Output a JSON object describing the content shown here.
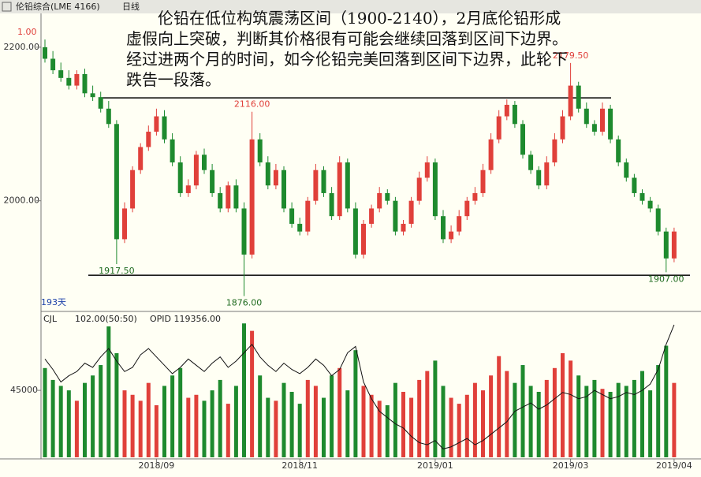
{
  "header": {
    "title": "伦铅综合(LME 4166)",
    "period": "日线",
    "scale_note": "1.00",
    "days": "193天"
  },
  "chart_data": [
    {
      "type": "candlestick",
      "title": "伦铅在低位构筑震荡区间（1900-2140），2月底伦铅形成虚假向上突破，判断其价格很有可能会继续回落到区间下边界。经过进两个月的时间，如今伦铅完美回落到区间下边界，此轮下跌告一段落。",
      "up_color": "#e0403a",
      "down_color": "#1e8a2e",
      "ylim": [
        1858,
        2243
      ],
      "yticks": [
        {
          "value": 2200,
          "label": "2200.00"
        },
        {
          "value": 2000,
          "label": "2000.00"
        }
      ],
      "open": [
        2200,
        2185,
        2170,
        2160,
        2150,
        2165,
        2140,
        2135,
        2120,
        2100,
        1950,
        1990,
        2040,
        2070,
        2090,
        2110,
        2080,
        2050,
        2010,
        2020,
        2060,
        2040,
        2010,
        1990,
        2020,
        1990,
        1930,
        2080,
        2050,
        2020,
        2040,
        1990,
        1970,
        1960,
        2000,
        2040,
        2010,
        1980,
        2050,
        1990,
        1930,
        1970,
        1990,
        2010,
        2000,
        1960,
        1970,
        2000,
        2030,
        2050,
        1980,
        1950,
        1960,
        1980,
        2000,
        2010,
        2040,
        2080,
        2110,
        2125,
        2100,
        2060,
        2040,
        2020,
        2050,
        2080,
        2110,
        2150,
        2120,
        2100,
        2090,
        2120,
        2080,
        2050,
        2030,
        2010,
        2000,
        1990,
        1960,
        1925
      ],
      "high": [
        2210,
        2195,
        2180,
        2170,
        2170,
        2172,
        2150,
        2142,
        2130,
        2105,
        1998,
        2045,
        2075,
        2098,
        2120,
        2118,
        2088,
        2058,
        2028,
        2065,
        2068,
        2048,
        2018,
        2025,
        2028,
        1998,
        2116,
        2088,
        2058,
        2048,
        2045,
        1998,
        1978,
        2005,
        2048,
        2045,
        2018,
        2058,
        2055,
        1998,
        1975,
        1995,
        2018,
        2015,
        2005,
        1975,
        2005,
        2038,
        2058,
        2055,
        1988,
        1968,
        1988,
        2005,
        2018,
        2048,
        2088,
        2118,
        2132,
        2130,
        2105,
        2065,
        2045,
        2058,
        2088,
        2118,
        2179.5,
        2155,
        2128,
        2105,
        2128,
        2125,
        2085,
        2055,
        2035,
        2015,
        2005,
        1995,
        1965,
        1965
      ],
      "low": [
        2180,
        2165,
        2155,
        2145,
        2145,
        2135,
        2130,
        2115,
        2095,
        1917.5,
        1945,
        1985,
        2035,
        2065,
        2085,
        2075,
        2045,
        2005,
        2005,
        2015,
        2035,
        2005,
        1985,
        1985,
        1985,
        1876,
        1925,
        2045,
        2015,
        2015,
        1985,
        1965,
        1955,
        1955,
        1995,
        2005,
        1975,
        1975,
        1985,
        1925,
        1925,
        1965,
        1985,
        1995,
        1955,
        1955,
        1965,
        1995,
        2025,
        1975,
        1945,
        1945,
        1955,
        1975,
        1995,
        2005,
        2035,
        2075,
        2105,
        2095,
        2055,
        2035,
        2015,
        2015,
        2045,
        2075,
        2105,
        2115,
        2095,
        2085,
        2085,
        2075,
        2045,
        2025,
        2005,
        1995,
        1985,
        1955,
        1907,
        1920
      ],
      "close": [
        2185,
        2170,
        2160,
        2150,
        2165,
        2140,
        2135,
        2120,
        2100,
        1950,
        1990,
        2040,
        2070,
        2090,
        2110,
        2080,
        2050,
        2010,
        2020,
        2060,
        2040,
        2010,
        1990,
        2020,
        1990,
        1930,
        2080,
        2050,
        2020,
        2040,
        1990,
        1970,
        1960,
        2000,
        2040,
        2010,
        1980,
        2050,
        1990,
        1930,
        1970,
        1990,
        2010,
        2000,
        1960,
        1970,
        2000,
        2030,
        2050,
        1980,
        1950,
        1960,
        1980,
        2000,
        2010,
        2040,
        2080,
        2110,
        2125,
        2100,
        2060,
        2040,
        2020,
        2050,
        2080,
        2110,
        2150,
        2120,
        2100,
        2090,
        2120,
        2080,
        2050,
        2030,
        2010,
        2000,
        1990,
        1960,
        1925,
        1960
      ],
      "levels": [
        2134,
        1903
      ],
      "annotations": [
        {
          "text": "2116.00",
          "value": 2116
        },
        {
          "text": "2179.50",
          "value": 2179.5
        },
        {
          "text": "1917.50",
          "value": 1917.5
        },
        {
          "text": "1876.00",
          "value": 1876
        },
        {
          "text": "1907.00",
          "value": 1907
        }
      ]
    },
    {
      "type": "bar",
      "name": "CJL",
      "params": "102.00(50:50)",
      "line_label": "OPID 119356.00",
      "categories": [
        null,
        null,
        null,
        null,
        null,
        null,
        null,
        null,
        null,
        null,
        null,
        null,
        null,
        null,
        "2018/09",
        null,
        null,
        null,
        null,
        null,
        null,
        null,
        null,
        null,
        null,
        null,
        null,
        null,
        null,
        null,
        null,
        null,
        "2018/11",
        null,
        null,
        null,
        null,
        null,
        null,
        null,
        null,
        null,
        null,
        null,
        null,
        null,
        null,
        null,
        null,
        "2019/01",
        null,
        null,
        null,
        null,
        null,
        null,
        null,
        null,
        null,
        null,
        null,
        null,
        null,
        null,
        null,
        null,
        "2019/03",
        null,
        null,
        null,
        null,
        null,
        null,
        null,
        null,
        null,
        null,
        null,
        null,
        "2019/04"
      ],
      "ylim": [
        0,
        97000
      ],
      "yticks": [
        45000
      ],
      "y2lim": [
        56000,
        125000
      ],
      "values": [
        60000,
        52000,
        48000,
        45000,
        38000,
        50000,
        55000,
        62000,
        88000,
        70000,
        45000,
        42000,
        38000,
        50000,
        35000,
        48000,
        55000,
        60000,
        40000,
        42000,
        38000,
        45000,
        52000,
        36000,
        48000,
        90000,
        85000,
        55000,
        40000,
        38000,
        50000,
        44000,
        36000,
        52000,
        48000,
        40000,
        55000,
        60000,
        45000,
        72000,
        48000,
        42000,
        38000,
        35000,
        50000,
        44000,
        40000,
        52000,
        58000,
        65000,
        48000,
        40000,
        36000,
        42000,
        50000,
        45000,
        55000,
        68000,
        58000,
        50000,
        62000,
        48000,
        44000,
        52000,
        60000,
        70000,
        65000,
        55000,
        48000,
        52000,
        46000,
        44000,
        50000,
        48000,
        52000,
        58000,
        45000,
        62000,
        75000,
        50000
      ],
      "series": [
        {
          "name": "OPID",
          "color": "#111111",
          "axis": "y2",
          "values": [
            103000,
            98000,
            92000,
            95000,
            97000,
            101000,
            99000,
            104000,
            108000,
            102000,
            97000,
            99000,
            105000,
            108000,
            104000,
            100000,
            96000,
            99000,
            103000,
            100000,
            97000,
            101000,
            104000,
            99000,
            102000,
            106000,
            110000,
            104000,
            100000,
            97000,
            101000,
            98000,
            96000,
            99000,
            103000,
            100000,
            95000,
            98000,
            106000,
            109000,
            92000,
            84000,
            78000,
            75000,
            72000,
            70000,
            66000,
            63000,
            62000,
            64000,
            60000,
            61000,
            63000,
            65000,
            62000,
            64000,
            67000,
            70000,
            73000,
            78000,
            80000,
            82000,
            79000,
            81000,
            84000,
            87000,
            86000,
            84000,
            85000,
            88000,
            86000,
            84000,
            85000,
            87000,
            86000,
            88000,
            91000,
            98000,
            110000,
            119356
          ]
        }
      ]
    }
  ]
}
